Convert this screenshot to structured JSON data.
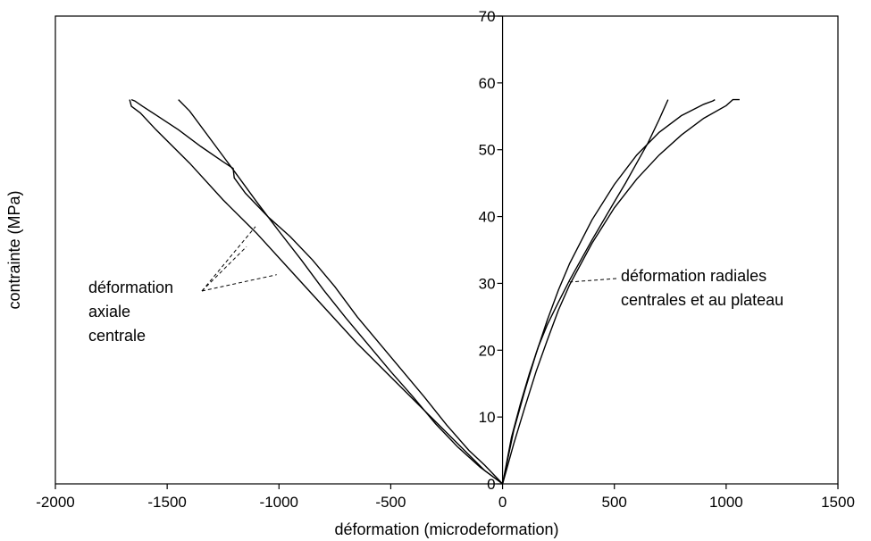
{
  "chart_data": {
    "type": "line",
    "title": "",
    "xlabel": "déformation (microdeformation)",
    "ylabel": "contrainte (MPa)",
    "xlim": [
      -2000,
      1500
    ],
    "ylim": [
      0,
      70
    ],
    "xticks": [
      -2000,
      -1500,
      -1000,
      -500,
      0,
      500,
      1000,
      1500
    ],
    "yticks": [
      0,
      10,
      20,
      30,
      40,
      50,
      60,
      70
    ],
    "grid": false,
    "series": [
      {
        "x": [
          0,
          -80,
          -200,
          -350,
          -500,
          -650,
          -800,
          -950,
          -1100,
          -1250,
          -1400,
          -1550,
          -1620,
          -1660,
          -1668
        ],
        "y": [
          0,
          2,
          6,
          11,
          16,
          21,
          26.5,
          32,
          37.5,
          42.5,
          48,
          53,
          55.5,
          56.5,
          57.5
        ]
      },
      {
        "x": [
          0,
          -80,
          -150,
          -250,
          -350,
          -450,
          -550,
          -650,
          -750,
          -850,
          -950,
          -1050,
          -1150,
          -1200,
          -1205,
          -1250,
          -1350,
          -1450,
          -1550,
          -1610,
          -1645,
          -1660
        ],
        "y": [
          0,
          2.8,
          5,
          8.8,
          13,
          17,
          21,
          25,
          29.5,
          33.5,
          37,
          40,
          43.5,
          45.8,
          47.2,
          48.2,
          50.5,
          53,
          55.2,
          56.5,
          57.3,
          57.5
        ]
      },
      {
        "x": [
          0,
          -100,
          -200,
          -300,
          -400,
          -500,
          -600,
          -700,
          -800,
          -900,
          -1000,
          -1100,
          -1200,
          -1300,
          -1400,
          -1450
        ],
        "y": [
          0,
          2.5,
          5.5,
          9,
          13,
          16.8,
          20.8,
          24.8,
          29,
          33.5,
          37.8,
          42.2,
          46.8,
          51.3,
          55.8,
          57.5
        ]
      },
      {
        "x": [
          0,
          40,
          80,
          120,
          160,
          200,
          250,
          300,
          400,
          500,
          550,
          600,
          650,
          700,
          740
        ],
        "y": [
          0,
          7,
          12,
          16.5,
          20.5,
          23.8,
          27.2,
          30.5,
          36.5,
          42.2,
          45,
          48,
          51,
          54.5,
          57.5
        ]
      },
      {
        "x": [
          0,
          50,
          100,
          150,
          200,
          250,
          300,
          400,
          500,
          600,
          700,
          800,
          900,
          940,
          950
        ],
        "y": [
          0,
          8,
          14,
          19.5,
          24.5,
          29,
          33,
          39.5,
          44.8,
          49.2,
          52.6,
          55.1,
          56.8,
          57.3,
          57.5
        ]
      },
      {
        "x": [
          0,
          50,
          100,
          150,
          200,
          250,
          300,
          400,
          500,
          600,
          700,
          800,
          900,
          1000,
          1030,
          1060
        ],
        "y": [
          0,
          6,
          11.5,
          16.8,
          21.5,
          26,
          29.8,
          36,
          41.3,
          45.6,
          49.2,
          52.2,
          54.7,
          56.6,
          57.5,
          57.5
        ]
      }
    ],
    "annotations": [
      {
        "lines": [
          "déformation",
          "axiale",
          "centrale"
        ]
      },
      {
        "lines": [
          "déformation radiales",
          "centrales et au plateau"
        ]
      }
    ]
  }
}
